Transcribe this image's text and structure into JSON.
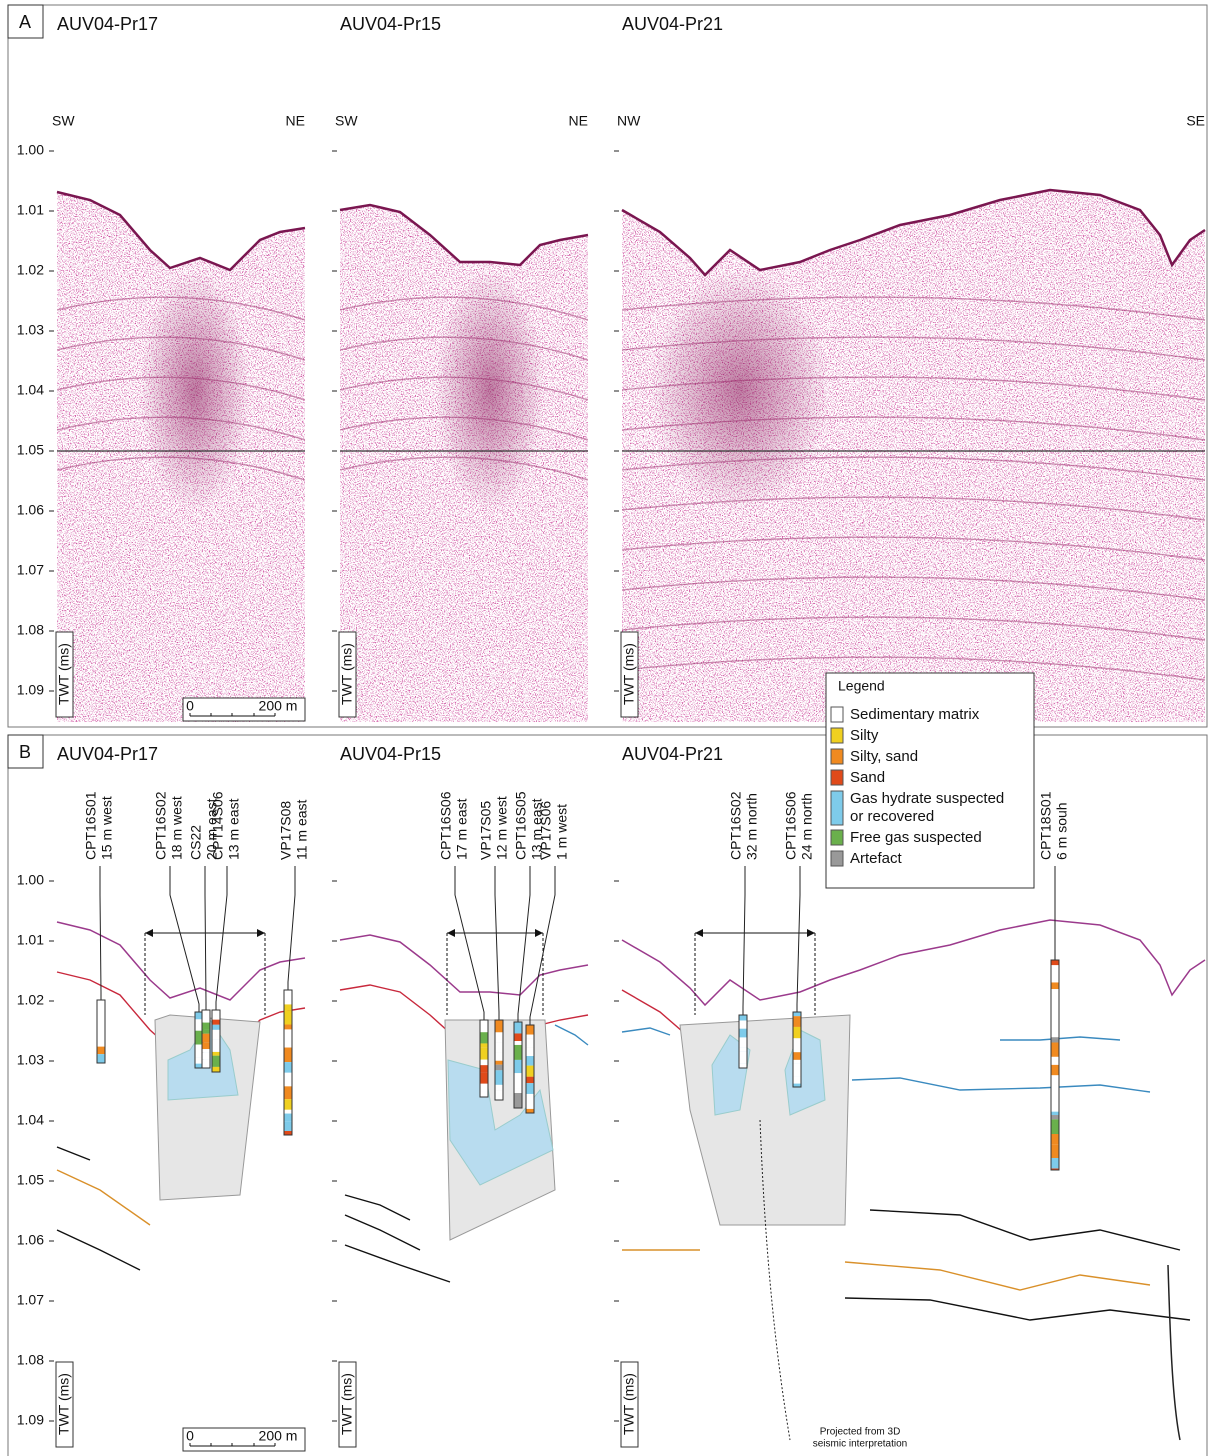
{
  "yticks": [
    "1.00",
    "1.01",
    "1.02",
    "1.03",
    "1.04",
    "1.05",
    "1.06",
    "1.07",
    "1.08",
    "1.09"
  ],
  "panels": [
    {
      "letter": "A",
      "profiles": [
        {
          "title": "AUV04-Pr17",
          "left": "SW",
          "right": "NE",
          "axis_label": "TWT (ms)",
          "scale": {
            "start": "0",
            "end": "200 m"
          }
        },
        {
          "title": "AUV04-Pr15",
          "left": "SW",
          "right": "NE",
          "axis_label": "TWT (ms)"
        },
        {
          "title": "AUV04-Pr21",
          "left": "NW",
          "right": "SE",
          "axis_label": "TWT (ms)"
        }
      ]
    },
    {
      "letter": "B",
      "profiles": [
        {
          "title": "AUV04-Pr17",
          "axis_label": "TWT (ms)",
          "scale": {
            "start": "0",
            "end": "200 m"
          },
          "wells": [
            {
              "name": "CPT16S01",
              "offset": "15 m west"
            },
            {
              "name": "CPT16S02",
              "offset": "18 m west"
            },
            {
              "name": "CS22",
              "offset": "20 m east"
            },
            {
              "name": "CPT14S06",
              "offset": "13 m east"
            },
            {
              "name": "VP17S08",
              "offset": "11 m east"
            }
          ]
        },
        {
          "title": "AUV04-Pr15",
          "axis_label": "TWT (ms)",
          "wells": [
            {
              "name": "CPT16S06",
              "offset": "17 m east"
            },
            {
              "name": "VP17S05",
              "offset": "12 m west"
            },
            {
              "name": "CPT16S05",
              "offset": "13 m east"
            },
            {
              "name": "VP17S06",
              "offset": "1 m west"
            }
          ]
        },
        {
          "title": "AUV04-Pr21",
          "axis_label": "TWT (ms)",
          "wells": [
            {
              "name": "CPT16S02",
              "offset": "32 m north"
            },
            {
              "name": "CPT16S06",
              "offset": "24 m north"
            },
            {
              "name": "CPT18S01",
              "offset": "6 m souh"
            }
          ],
          "note": [
            "Projected from 3D",
            "seismic interpretation"
          ]
        }
      ]
    }
  ],
  "legend": {
    "title": "Legend",
    "items": [
      {
        "lines": [
          "Sedimentary matrix"
        ],
        "color": "#ffffff"
      },
      {
        "lines": [
          "Silty"
        ],
        "color": "#f0d020"
      },
      {
        "lines": [
          "Silty, sand"
        ],
        "color": "#f08a20"
      },
      {
        "lines": [
          "Sand"
        ],
        "color": "#e04a1a"
      },
      {
        "lines": [
          "Gas hydrate suspected",
          "or recovered"
        ],
        "color": "#7ecbea"
      },
      {
        "lines": [
          "Free gas suspected"
        ],
        "color": "#6ab04c"
      },
      {
        "lines": [
          "Artefact"
        ],
        "color": "#999999"
      }
    ]
  }
}
